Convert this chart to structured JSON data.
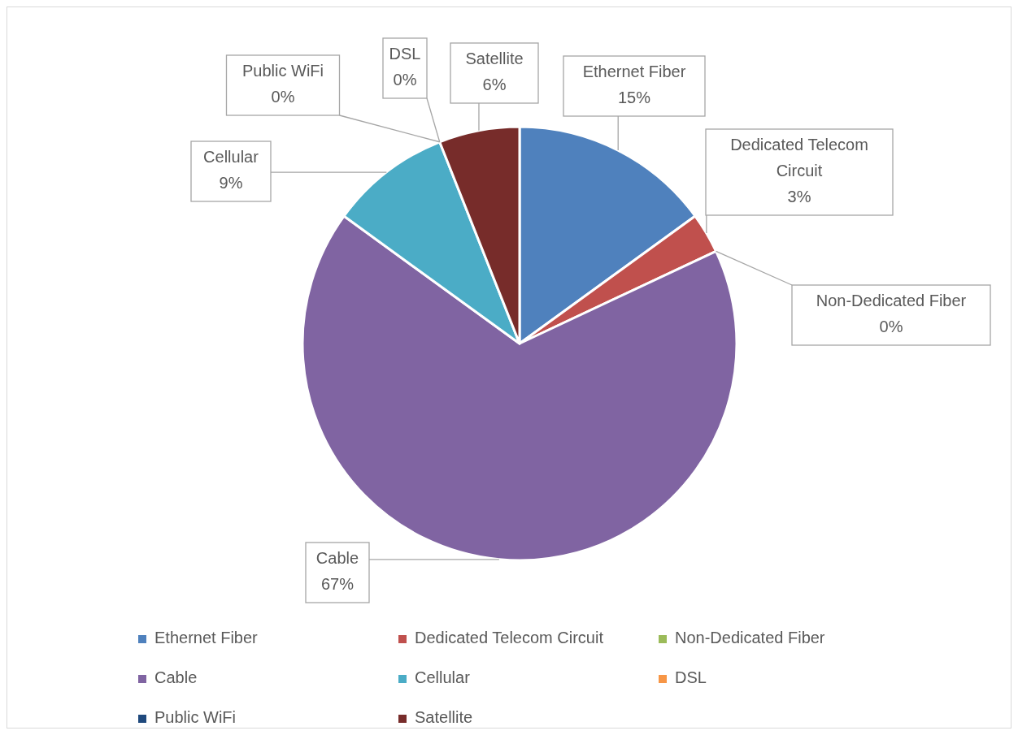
{
  "chart_data": {
    "type": "pie",
    "categories": [
      "Ethernet Fiber",
      "Dedicated Telecom Circuit",
      "Non-Dedicated Fiber",
      "Cable",
      "Cellular",
      "DSL",
      "Public WiFi",
      "Satellite"
    ],
    "values": [
      15,
      3,
      0,
      67,
      9,
      0,
      0,
      6
    ],
    "value_labels": [
      "15%",
      "3%",
      "0%",
      "67%",
      "9%",
      "0%",
      "0%",
      "6%"
    ],
    "colors": [
      "#4f81bd",
      "#c0504d",
      "#9bbb59",
      "#8064a2",
      "#4bacc6",
      "#f79646",
      "#1f497d",
      "#772c2a"
    ],
    "legend": "bottom"
  }
}
